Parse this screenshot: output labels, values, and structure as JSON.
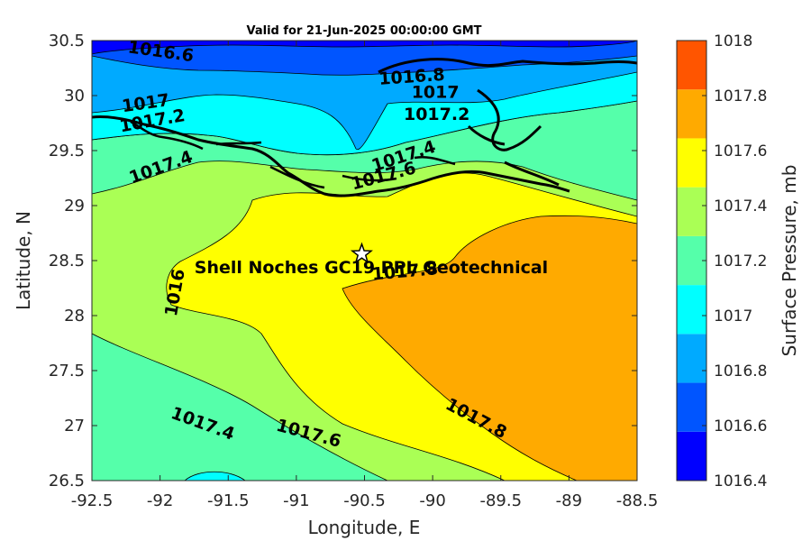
{
  "map": {
    "title": "Valid for 21-Jun-2025 00:00:00 GMT",
    "xlabel": "Longitude, E",
    "ylabel": "Latitude, N",
    "xlim": [
      -92.5,
      -88.5
    ],
    "ylim": [
      26.5,
      30.5
    ],
    "xticks": [
      "-92.5",
      "-92",
      "-91.5",
      "-91",
      "-90.5",
      "-90",
      "-89.5",
      "-89",
      "-88.5"
    ],
    "yticks": [
      "26.5",
      "27",
      "27.5",
      "28",
      "28.5",
      "29",
      "29.5",
      "30",
      "30.5"
    ],
    "annotation": "Shell Noches   GC19 PPL  Geotechnical",
    "marker": {
      "symbol": "star",
      "lon": -90.52,
      "lat": 28.56
    },
    "contour_labels": [
      {
        "text": "1016.6",
        "lon": -92.0,
        "lat": 30.35,
        "angle": 8
      },
      {
        "text": "1016.8",
        "lon": -90.15,
        "lat": 30.12,
        "angle": -4
      },
      {
        "text": "1017",
        "lon": -89.98,
        "lat": 29.98,
        "angle": 0
      },
      {
        "text": "1017",
        "lon": -92.1,
        "lat": 29.88,
        "angle": -8
      },
      {
        "text": "1017.2",
        "lon": -92.05,
        "lat": 29.72,
        "angle": -10
      },
      {
        "text": "1017.2",
        "lon": -89.97,
        "lat": 29.78,
        "angle": 0
      },
      {
        "text": "1017.4",
        "lon": -91.98,
        "lat": 29.3,
        "angle": -20
      },
      {
        "text": "1017.4",
        "lon": -90.2,
        "lat": 29.4,
        "angle": -18
      },
      {
        "text": "1017.6",
        "lon": -90.35,
        "lat": 29.22,
        "angle": -15
      },
      {
        "text": "1016",
        "lon": -91.85,
        "lat": 28.2,
        "angle": -80
      },
      {
        "text": "1017.8",
        "lon": -90.2,
        "lat": 28.35,
        "angle": -5
      },
      {
        "text": "1017.8",
        "lon": -89.7,
        "lat": 27.02,
        "angle": 28
      },
      {
        "text": "1017.4",
        "lon": -91.7,
        "lat": 26.97,
        "angle": 20
      },
      {
        "text": "1017.6",
        "lon": -90.92,
        "lat": 26.88,
        "angle": 15
      }
    ]
  },
  "colorbar": {
    "label": "Surface Pressure, mb",
    "ticks": [
      "1016.4",
      "1016.6",
      "1016.8",
      "1017",
      "1017.2",
      "1017.4",
      "1017.6",
      "1017.8",
      "1018"
    ],
    "colors": [
      "#0000ff",
      "#0055ff",
      "#00aaff",
      "#00ffff",
      "#55ffaa",
      "#aaff55",
      "#ffff00",
      "#ffaa00",
      "#ff5500"
    ]
  }
}
